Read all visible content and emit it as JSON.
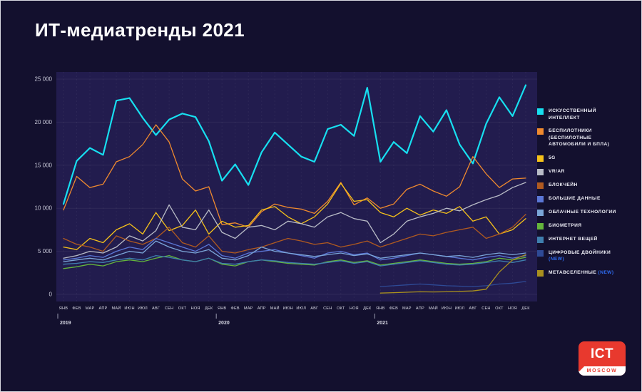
{
  "page": {
    "title": "ИТ-медиатренды 2021"
  },
  "logo": {
    "line1": "ICT",
    "line2": "MOSCOW"
  },
  "chart_data": {
    "type": "line",
    "title": "ИТ-медиатренды 2021",
    "grid": true,
    "legend_position": "right",
    "months": [
      "ЯНВ",
      "ФЕВ",
      "МАР",
      "АПР",
      "МАЙ",
      "ИЮН",
      "ИЮЛ",
      "АВГ",
      "СЕН",
      "ОКТ",
      "НОЯ",
      "ДЕК"
    ],
    "years": [
      "2019",
      "2020",
      "2021"
    ],
    "ylim": [
      0,
      25000
    ],
    "yticks": [
      0,
      5000,
      10000,
      15000,
      20000,
      25000
    ],
    "ytick_labels": [
      "0",
      "5 000",
      "10 000",
      "15 000",
      "20 000",
      "25 000"
    ],
    "series": [
      {
        "id": "ai",
        "name": "ИСКУССТВЕННЫЙ ИНТЕЛЛЕКТ",
        "color": "#17dff0",
        "values": [
          10500,
          15500,
          17000,
          16200,
          22500,
          22800,
          20500,
          18500,
          20300,
          21000,
          20600,
          17800,
          13200,
          15100,
          12700,
          16500,
          18800,
          17400,
          16000,
          15400,
          19200,
          19700,
          18400,
          24000,
          15400,
          17700,
          16400,
          20700,
          18900,
          21400,
          17400,
          15200,
          19800,
          22900,
          20700,
          24300
        ]
      },
      {
        "id": "drones",
        "name": "БЕСПИЛОТНИКИ (БЕСПИЛОТНЫЕ АВТОМОБИЛИ И БПЛА)",
        "color": "#f08a2e",
        "values": [
          9800,
          13700,
          12400,
          12800,
          15400,
          16000,
          17400,
          19700,
          17700,
          13400,
          12000,
          12500,
          8100,
          8300,
          7800,
          9600,
          10500,
          10100,
          9900,
          9400,
          10800,
          13000,
          10400,
          11200,
          10000,
          10500,
          12200,
          12800,
          12000,
          11400,
          12500,
          16000,
          14000,
          12400,
          13400,
          13500
        ]
      },
      {
        "id": "5g",
        "name": "5G",
        "color": "#f6c21a",
        "values": [
          5500,
          5200,
          6500,
          6000,
          7500,
          8200,
          7000,
          9500,
          7400,
          8000,
          9800,
          7000,
          8500,
          7800,
          8000,
          9800,
          10200,
          9000,
          8200,
          9000,
          10500,
          12900,
          10800,
          11000,
          9500,
          9000,
          10000,
          9200,
          9800,
          9400,
          10200,
          8500,
          9000,
          7000,
          7500,
          8800
        ]
      },
      {
        "id": "vr-ar",
        "name": "VR/AR",
        "color": "#b9bcc7",
        "values": [
          4200,
          4500,
          5000,
          4800,
          5500,
          6800,
          6200,
          7400,
          10400,
          7800,
          7500,
          9800,
          7200,
          6500,
          7800,
          8000,
          7500,
          8500,
          8200,
          7800,
          9000,
          9500,
          8800,
          8500,
          6000,
          7000,
          8500,
          9000,
          9400,
          10000,
          9700,
          10400,
          11000,
          11500,
          12400,
          13000
        ]
      },
      {
        "id": "blockchain",
        "name": "БЛОКЧЕЙН",
        "color": "#b05a20",
        "values": [
          6500,
          5800,
          5500,
          5000,
          6800,
          6200,
          5800,
          6500,
          7800,
          6000,
          5500,
          6800,
          5000,
          4800,
          5200,
          5500,
          6000,
          6500,
          6200,
          5800,
          6000,
          5500,
          5800,
          6200,
          5500,
          6000,
          6500,
          7000,
          6800,
          7200,
          7500,
          7800,
          6500,
          7000,
          7800,
          9300
        ]
      },
      {
        "id": "big-data",
        "name": "БОЛЬШИЕ ДАННЫЕ",
        "color": "#5b77d6",
        "values": [
          4000,
          4200,
          4500,
          4300,
          5000,
          5500,
          5200,
          6500,
          6000,
          5500,
          5000,
          5800,
          4500,
          4200,
          4800,
          5000,
          5200,
          4800,
          4500,
          4200,
          4800,
          5000,
          4600,
          4800,
          4000,
          4200,
          4500,
          4800,
          4600,
          4400,
          4200,
          4000,
          4300,
          4500,
          4200,
          4500
        ]
      },
      {
        "id": "cloud",
        "name": "ОБЛАЧНЫЕ ТЕХНОЛОГИИ",
        "color": "#7ba6d8",
        "values": [
          3800,
          4000,
          4200,
          4000,
          4500,
          5000,
          4800,
          6200,
          5500,
          5000,
          4800,
          5200,
          4200,
          4000,
          4500,
          5500,
          5000,
          4800,
          4600,
          4400,
          4600,
          4800,
          4500,
          4700,
          4200,
          4400,
          4600,
          4800,
          4600,
          4400,
          4500,
          4300,
          4600,
          4800,
          4600,
          4800
        ]
      },
      {
        "id": "biometrics",
        "name": "БИОМЕТРИЯ",
        "color": "#64b53c",
        "values": [
          3000,
          3200,
          3500,
          3300,
          3800,
          4000,
          3800,
          4200,
          4500,
          4000,
          3800,
          4200,
          3500,
          3300,
          3800,
          4000,
          3800,
          3600,
          3500,
          3400,
          3800,
          4000,
          3700,
          3900,
          3400,
          3600,
          3800,
          4000,
          3800,
          3600,
          3500,
          3600,
          3800,
          4200,
          4000,
          4300
        ]
      },
      {
        "id": "iot",
        "name": "ИНТЕРНЕТ ВЕЩЕЙ",
        "color": "#3f7fae",
        "values": [
          3500,
          3600,
          3800,
          3700,
          4000,
          4200,
          4000,
          4500,
          4300,
          4000,
          3800,
          4200,
          3600,
          3500,
          3800,
          4000,
          3900,
          3700,
          3600,
          3500,
          3700,
          3900,
          3600,
          3800,
          3300,
          3500,
          3700,
          3900,
          3700,
          3500,
          3400,
          3500,
          3700,
          3900,
          3700,
          4000
        ]
      },
      {
        "id": "digital-twins",
        "name": "ЦИФРОВЫЕ ДВОЙНИКИ",
        "badge": "(NEW)",
        "color": "#2e4a96",
        "values": [
          null,
          null,
          null,
          null,
          null,
          null,
          null,
          null,
          null,
          null,
          null,
          null,
          null,
          null,
          null,
          null,
          null,
          null,
          null,
          null,
          null,
          null,
          null,
          null,
          900,
          1000,
          1100,
          1200,
          1100,
          1000,
          950,
          900,
          1000,
          1200,
          1300,
          1500
        ]
      },
      {
        "id": "metaverse",
        "name": "МЕТАВСЕЛЕННЫЕ",
        "badge": "(NEW)",
        "color": "#a9901e",
        "values": [
          null,
          null,
          null,
          null,
          null,
          null,
          null,
          null,
          null,
          null,
          null,
          null,
          null,
          null,
          null,
          null,
          null,
          null,
          null,
          null,
          null,
          null,
          null,
          null,
          150,
          200,
          250,
          300,
          280,
          300,
          350,
          400,
          600,
          2600,
          4000,
          4600
        ]
      }
    ]
  }
}
